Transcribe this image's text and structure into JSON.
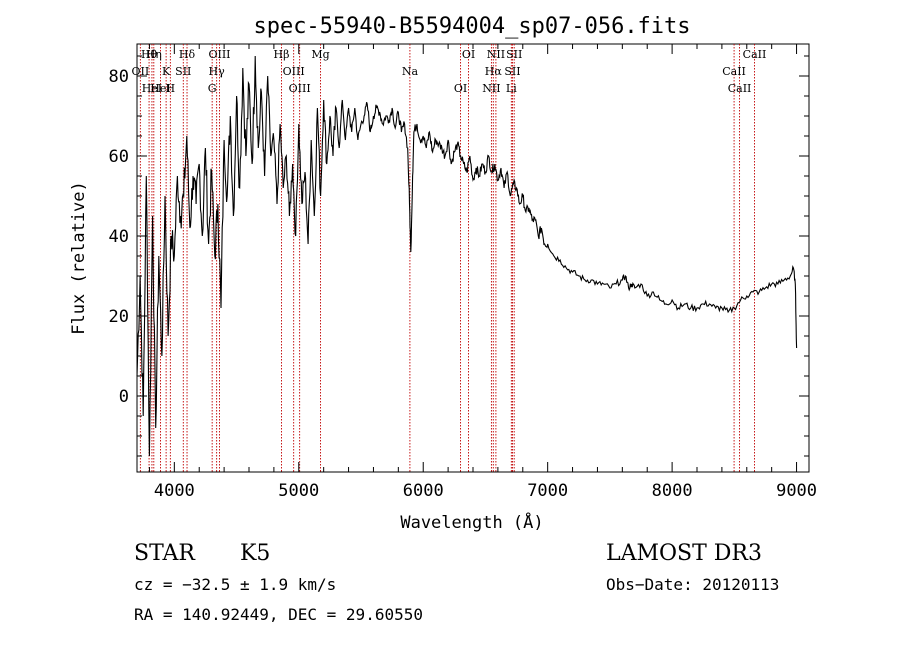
{
  "chart_data": {
    "type": "line",
    "title": "spec-55940-B5594004_sp07-056.fits",
    "xlabel": "Wavelength (Å)",
    "ylabel": "Flux (relative)",
    "xlim": [
      3700,
      9100
    ],
    "ylim": [
      -19,
      88
    ],
    "x_ticks": [
      4000,
      5000,
      6000,
      7000,
      8000,
      9000
    ],
    "y_ticks": [
      0,
      20,
      40,
      60,
      80
    ],
    "x_tick_labels": [
      "4000",
      "5000",
      "6000",
      "7000",
      "8000",
      "9000"
    ],
    "y_tick_labels": [
      "0",
      "20",
      "40",
      "60",
      "80"
    ],
    "series": [
      {
        "name": "flux",
        "x": [
          3700,
          3725,
          3750,
          3775,
          3800,
          3825,
          3850,
          3875,
          3900,
          3925,
          3950,
          3975,
          4000,
          4025,
          4050,
          4075,
          4100,
          4125,
          4150,
          4175,
          4200,
          4225,
          4250,
          4275,
          4300,
          4325,
          4350,
          4375,
          4400,
          4425,
          4450,
          4475,
          4500,
          4525,
          4550,
          4575,
          4600,
          4625,
          4650,
          4675,
          4700,
          4725,
          4750,
          4775,
          4800,
          4825,
          4850,
          4875,
          4900,
          4925,
          4950,
          4975,
          5000,
          5025,
          5050,
          5075,
          5100,
          5125,
          5150,
          5175,
          5200,
          5225,
          5250,
          5275,
          5300,
          5325,
          5350,
          5375,
          5400,
          5425,
          5450,
          5475,
          5500,
          5525,
          5550,
          5575,
          5600,
          5625,
          5650,
          5675,
          5700,
          5725,
          5750,
          5775,
          5800,
          5825,
          5850,
          5875,
          5890,
          5900,
          5915,
          5925,
          5950,
          5975,
          6000,
          6025,
          6050,
          6075,
          6100,
          6125,
          6150,
          6175,
          6200,
          6225,
          6250,
          6275,
          6300,
          6325,
          6350,
          6375,
          6400,
          6425,
          6450,
          6475,
          6500,
          6525,
          6550,
          6575,
          6600,
          6625,
          6650,
          6675,
          6700,
          6725,
          6750,
          6775,
          6800,
          6825,
          6850,
          6875,
          6900,
          6925,
          6950,
          6975,
          7000,
          7050,
          7100,
          7150,
          7200,
          7250,
          7300,
          7350,
          7400,
          7450,
          7500,
          7550,
          7600,
          7625,
          7650,
          7675,
          7700,
          7750,
          7800,
          7850,
          7900,
          7950,
          8000,
          8050,
          8100,
          8150,
          8200,
          8250,
          8300,
          8350,
          8400,
          8450,
          8500,
          8550,
          8600,
          8650,
          8700,
          8750,
          8800,
          8850,
          8900,
          8950,
          8975,
          8990,
          9000
        ],
        "y": [
          5,
          30,
          -5,
          55,
          -15,
          45,
          -8,
          35,
          10,
          50,
          15,
          40,
          35,
          55,
          45,
          50,
          65,
          42,
          55,
          48,
          58,
          40,
          62,
          38,
          56,
          35,
          48,
          22,
          64,
          50,
          70,
          45,
          75,
          52,
          82,
          60,
          78,
          58,
          85,
          62,
          76,
          55,
          80,
          60,
          64,
          48,
          68,
          52,
          60,
          45,
          58,
          40,
          68,
          48,
          56,
          38,
          64,
          45,
          72,
          50,
          74,
          58,
          70,
          60,
          72,
          62,
          74,
          64,
          72,
          66,
          72,
          64,
          68,
          70,
          73,
          66,
          70,
          72,
          71,
          68,
          70,
          69,
          72,
          67,
          71,
          66,
          68,
          62,
          48,
          36,
          55,
          66,
          68,
          64,
          65,
          62,
          66,
          61,
          64,
          63,
          62,
          60,
          64,
          58,
          61,
          63,
          60,
          58,
          56,
          60,
          54,
          57,
          55,
          58,
          56,
          60,
          56,
          58,
          54,
          57,
          52,
          56,
          50,
          53,
          52,
          48,
          50,
          46,
          47,
          44,
          44,
          40,
          42,
          38,
          38,
          35,
          34,
          32,
          31,
          30,
          29,
          29,
          28,
          28,
          27,
          28,
          29,
          30,
          27,
          28,
          27,
          28,
          25,
          26,
          24,
          23,
          24,
          22,
          23,
          22,
          22,
          23,
          23,
          22,
          22,
          21,
          22,
          24,
          25,
          26,
          26,
          27,
          28,
          28,
          29,
          30,
          32,
          28,
          12
        ]
      }
    ],
    "lines": [
      {
        "label": "Hθ",
        "x": 3797
      },
      {
        "label": "OII",
        "x": 3727
      },
      {
        "label": "HeI",
        "x": 3820
      },
      {
        "label": "Hη",
        "x": 3835
      },
      {
        "label": "K",
        "x": 3934
      },
      {
        "label": "H",
        "x": 3968
      },
      {
        "label": "Hδ",
        "x": 4102
      },
      {
        "label": "SII",
        "x": 4072
      },
      {
        "label": "HeI",
        "x": 3889
      },
      {
        "label": "OIII",
        "x": 4363
      },
      {
        "label": "Hγ",
        "x": 4340
      },
      {
        "label": "G",
        "x": 4304
      },
      {
        "label": "Hβ",
        "x": 4861
      },
      {
        "label": "OIII",
        "x": 4959
      },
      {
        "label": "OIII",
        "x": 5007
      },
      {
        "label": "Mg",
        "x": 5175
      },
      {
        "label": "Na",
        "x": 5893
      },
      {
        "label": "OI",
        "x": 6300
      },
      {
        "label": "OI",
        "x": 6364
      },
      {
        "label": "Hα",
        "x": 6563
      },
      {
        "label": "NII",
        "x": 6548
      },
      {
        "label": "NII",
        "x": 6584
      },
      {
        "label": "SII",
        "x": 6717
      },
      {
        "label": "Li",
        "x": 6708
      },
      {
        "label": "SII",
        "x": 6731
      },
      {
        "label": "CaII",
        "x": 8498
      },
      {
        "label": "CaII",
        "x": 8542
      },
      {
        "label": "CaII",
        "x": 8662
      }
    ]
  },
  "info": {
    "object_class": "STAR",
    "subclass": "K5",
    "survey": "LAMOST DR3",
    "cz": "cz = −32.5 ± 1.9 km/s",
    "obs_date": "Obs−Date: 20120113",
    "coords": "RA = 140.92449, DEC =  29.60550"
  }
}
